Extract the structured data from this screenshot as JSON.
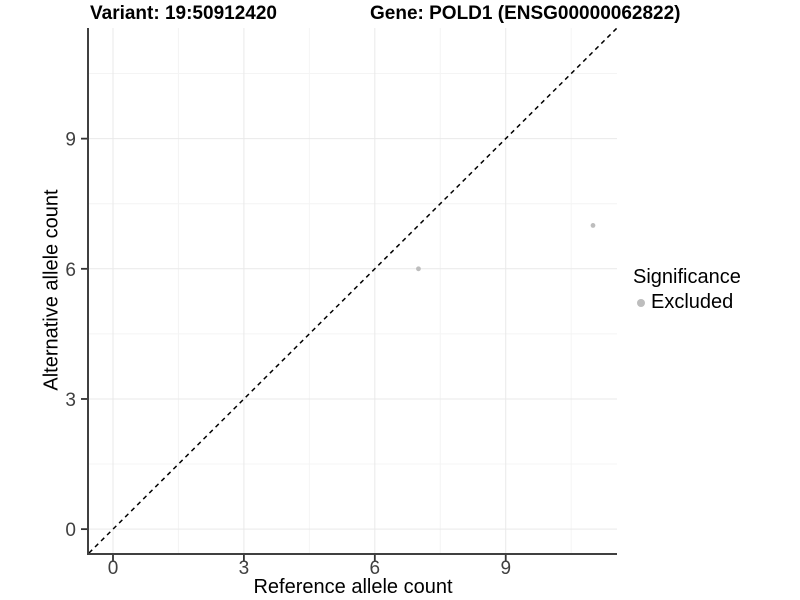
{
  "chart_data": {
    "type": "scatter",
    "titles": {
      "left": "Variant: 19:50912420",
      "right": "Gene: POLD1 (ENSG00000062822)"
    },
    "xlabel": "Reference allele count",
    "ylabel": "Alternative allele count",
    "xlim": [
      -0.55,
      11.55
    ],
    "ylim": [
      -0.55,
      11.55
    ],
    "x_major_ticks": [
      0,
      3,
      6,
      9
    ],
    "y_major_ticks": [
      0,
      3,
      6,
      9
    ],
    "x_minor_ticks": [
      1.5,
      4.5,
      7.5,
      10.5
    ],
    "y_minor_ticks": [
      1.5,
      4.5,
      7.5,
      10.5
    ],
    "identity_line": {
      "equation": "y = x",
      "style": "dashed",
      "color": "#000000"
    },
    "series": [
      {
        "name": "Excluded",
        "color": "#bdbdbd",
        "points": [
          [
            7,
            6
          ],
          [
            11,
            7
          ]
        ]
      }
    ],
    "legend": {
      "title": "Significance",
      "position": "right",
      "items": [
        {
          "label": "Excluded",
          "color": "#bdbdbd"
        }
      ]
    },
    "grid": true,
    "colors": {
      "background": "#ffffff",
      "grid_major": "#e9e9e9",
      "grid_minor": "#f4f4f4",
      "axis_line": "#404040",
      "tick_mark": "#333333",
      "axis_text": "#404040",
      "title_text": "#000000"
    }
  }
}
